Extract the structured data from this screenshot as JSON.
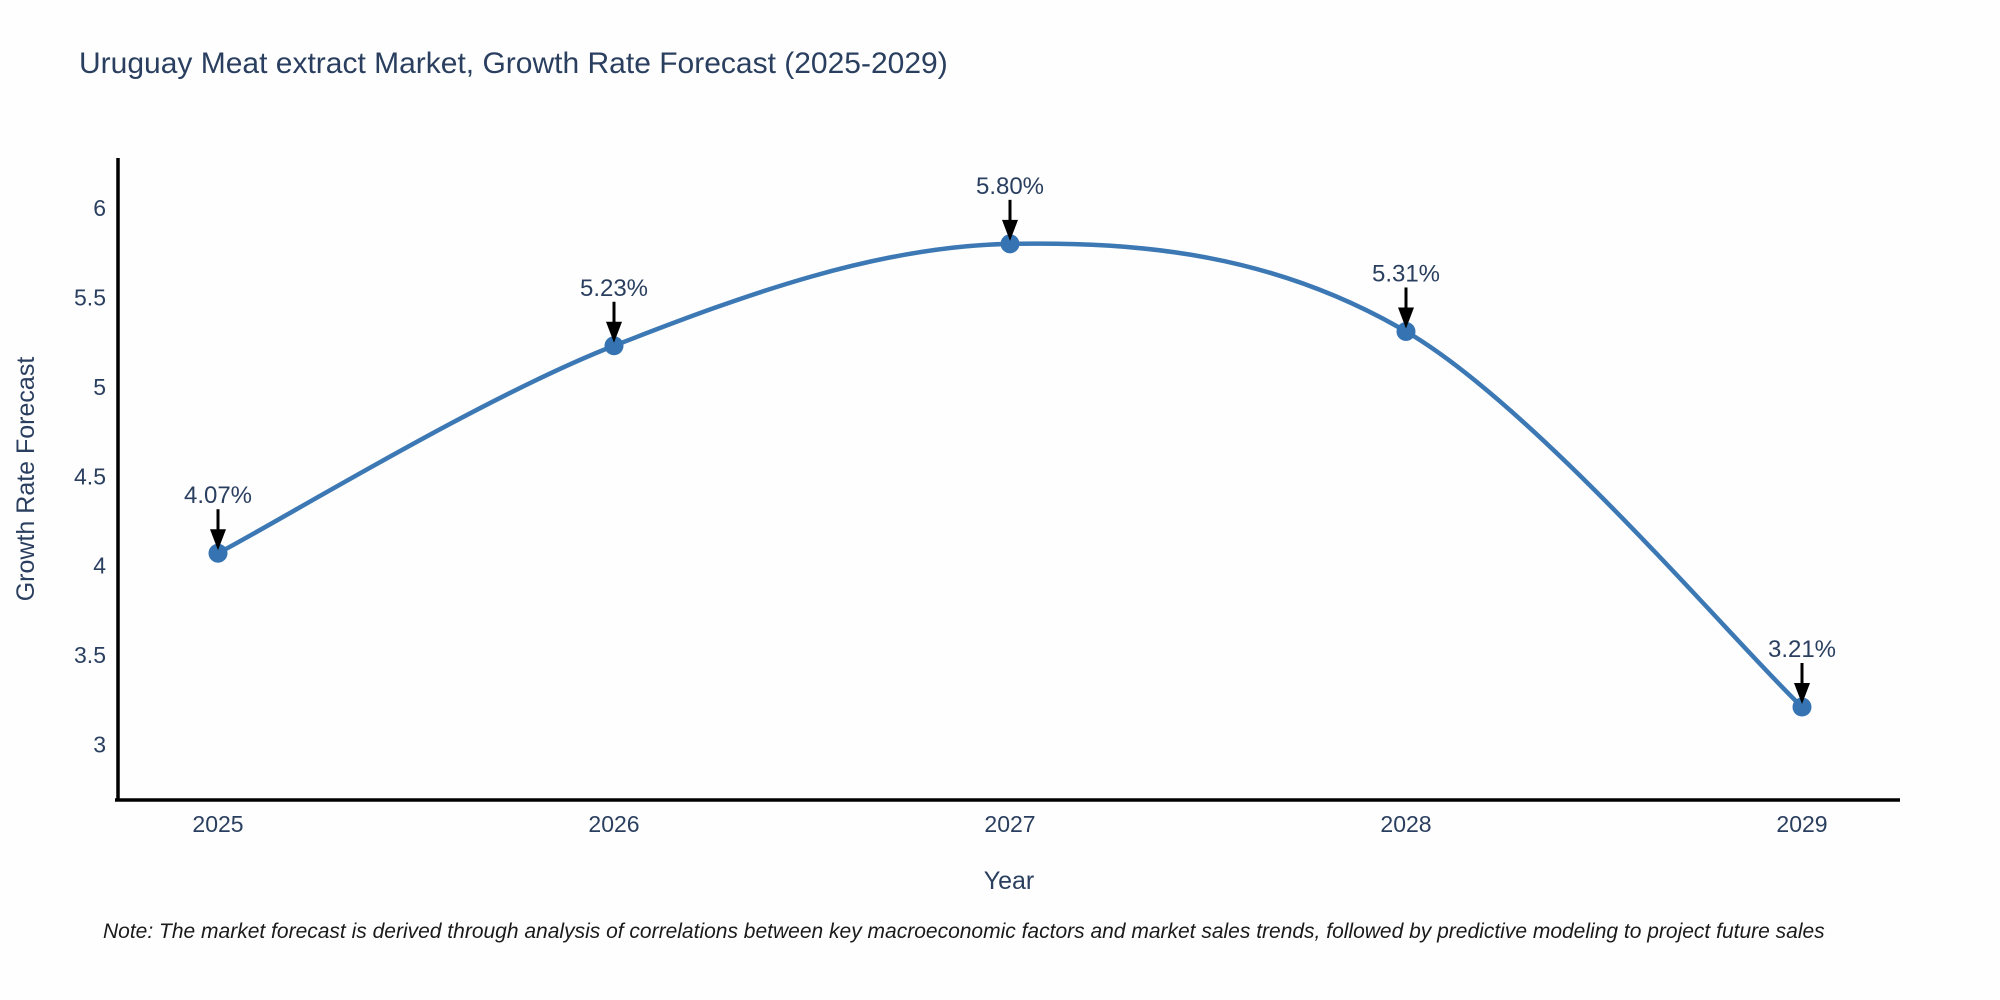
{
  "title": "Uruguay Meat extract Market, Growth Rate Forecast (2025-2029)",
  "note": "Note: The market forecast is derived through analysis of correlations between key macroeconomic factors and market sales trends, followed by predictive modeling to project future sales",
  "chart_data": {
    "type": "line",
    "title": "Uruguay Meat extract Market, Growth Rate Forecast (2025-2029)",
    "x": [
      "2025",
      "2026",
      "2027",
      "2028",
      "2029"
    ],
    "series": [
      {
        "name": "Growth Rate Forecast",
        "values": [
          4.07,
          5.23,
          5.8,
          5.31,
          3.21
        ]
      }
    ],
    "point_labels": [
      "4.07%",
      "5.23%",
      "5.80%",
      "5.31%",
      "3.21%"
    ],
    "xlabel": "Year",
    "ylabel": "Growth Rate Forecast",
    "yticks": [
      "3",
      "3.5",
      "4",
      "4.5",
      "5",
      "5.5",
      "6"
    ],
    "ylim": [
      2.69,
      6.28
    ],
    "grid": false,
    "legend": "none",
    "curve": "spline",
    "annotation_style": "down-arrow-to-point",
    "colors": {
      "line": "#3c78b4",
      "marker": "#3573b2",
      "axis": "#000000",
      "text": "#2a3f5f",
      "arrow": "#000000"
    }
  }
}
